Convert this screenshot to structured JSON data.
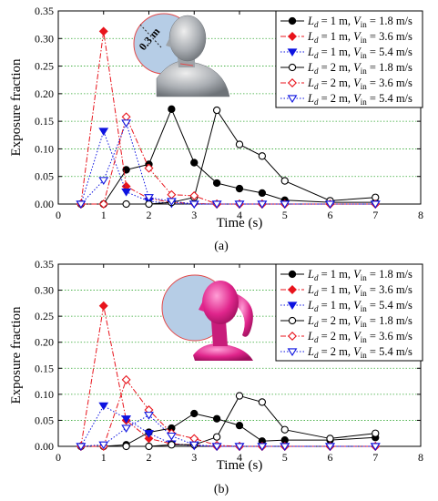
{
  "chart_data": [
    {
      "type": "line",
      "caption": "(a)",
      "xlabel": "Time (s)",
      "ylabel": "Exposure fraction",
      "xlim": [
        0,
        8
      ],
      "ylim": [
        0,
        0.35
      ],
      "xticks": [
        "0",
        "1",
        "2",
        "3",
        "4",
        "5",
        "6",
        "7",
        "8"
      ],
      "yticks": [
        "0.00",
        "0.05",
        "0.10",
        "0.15",
        "0.20",
        "0.25",
        "0.30",
        "0.35"
      ],
      "grid": "horizontal dotted green",
      "legend_position": "top-right",
      "inset": "male-head",
      "inset_label": "0.3 m",
      "series": [
        {
          "legend": [
            "L",
            "d",
            " = 1 m, ",
            "V",
            "in",
            " = 1.8 m/s"
          ],
          "color": "#000000",
          "marker": "circle-filled",
          "dash": "solid",
          "x": [
            0.5,
            1,
            1.5,
            2,
            2.5,
            3,
            3.5,
            4,
            4.5,
            5,
            6,
            7
          ],
          "y": [
            0.0,
            0.0,
            0.062,
            0.072,
            0.172,
            0.075,
            0.038,
            0.028,
            0.02,
            0.007,
            0.003,
            0.003
          ]
        },
        {
          "legend": [
            "L",
            "d",
            " = 1 m, ",
            "V",
            "in",
            " = 3.6 m/s"
          ],
          "color": "#e8141c",
          "marker": "diamond-filled",
          "dash": "dashdot",
          "x": [
            0.5,
            1,
            1.5,
            2,
            2.5,
            3,
            3.5,
            4,
            4.5,
            5,
            6,
            7
          ],
          "y": [
            0.0,
            0.313,
            0.032,
            0.01,
            0.003,
            0.001,
            0.0,
            0.0,
            0.0,
            0.0,
            0.0,
            0.0
          ]
        },
        {
          "legend": [
            "L",
            "d",
            " = 1 m, ",
            "V",
            "in",
            " = 5.4 m/s"
          ],
          "color": "#0d13e0",
          "marker": "triangle-down-filled",
          "dash": "dotted",
          "x": [
            0.5,
            1,
            1.5,
            2,
            2.5,
            3,
            3.5,
            4,
            4.5,
            5,
            6,
            7
          ],
          "y": [
            0.0,
            0.132,
            0.022,
            0.005,
            0.001,
            0.0,
            0.0,
            0.0,
            0.0,
            0.0,
            0.0,
            0.0
          ]
        },
        {
          "legend": [
            "L",
            "d",
            " = 2 m, ",
            "V",
            "in",
            " = 1.8 m/s"
          ],
          "color": "#000000",
          "marker": "circle-open",
          "dash": "solid",
          "x": [
            0.5,
            1,
            1.5,
            2,
            2.5,
            3,
            3.5,
            4,
            4.5,
            5,
            6,
            7
          ],
          "y": [
            0.0,
            0.0,
            0.0,
            0.0,
            0.003,
            0.012,
            0.17,
            0.108,
            0.087,
            0.042,
            0.006,
            0.012
          ]
        },
        {
          "legend": [
            "L",
            "d",
            " = 2 m, ",
            "V",
            "in",
            " = 3.6 m/s"
          ],
          "color": "#e8141c",
          "marker": "diamond-open",
          "dash": "dashdot",
          "x": [
            0.5,
            1,
            1.5,
            2,
            2.5,
            3,
            3.5,
            4,
            4.5,
            5,
            6,
            7
          ],
          "y": [
            0.0,
            0.0,
            0.158,
            0.065,
            0.017,
            0.015,
            0.0,
            0.0,
            0.0,
            0.0,
            0.0,
            0.0
          ]
        },
        {
          "legend": [
            "L",
            "d",
            " = 2 m, ",
            "V",
            "in",
            " = 5.4 m/s"
          ],
          "color": "#0d13e0",
          "marker": "triangle-down-open",
          "dash": "dotted",
          "x": [
            0.5,
            1,
            1.5,
            2,
            2.5,
            3,
            3.5,
            4,
            4.5,
            5,
            6,
            7
          ],
          "y": [
            0.0,
            0.043,
            0.147,
            0.012,
            0.005,
            0.0,
            0.0,
            0.0,
            0.0,
            0.0,
            0.0,
            0.0
          ]
        }
      ]
    },
    {
      "type": "line",
      "caption": "(b)",
      "xlabel": "Time (s)",
      "ylabel": "Exposure fraction",
      "xlim": [
        0,
        8
      ],
      "ylim": [
        0,
        0.35
      ],
      "xticks": [
        "0",
        "1",
        "2",
        "3",
        "4",
        "5",
        "6",
        "7",
        "8"
      ],
      "yticks": [
        "0.00",
        "0.05",
        "0.10",
        "0.15",
        "0.20",
        "0.25",
        "0.30",
        "0.35"
      ],
      "grid": "horizontal dotted green",
      "legend_position": "top-right",
      "inset": "female-head",
      "series": [
        {
          "legend": [
            "L",
            "d",
            " = 1 m, ",
            "V",
            "in",
            " = 1.8 m/s"
          ],
          "color": "#000000",
          "marker": "circle-filled",
          "dash": "solid",
          "x": [
            0.5,
            1,
            1.5,
            2,
            2.5,
            3,
            3.5,
            4,
            4.5,
            5,
            6,
            7
          ],
          "y": [
            0.0,
            0.0,
            0.003,
            0.027,
            0.035,
            0.063,
            0.053,
            0.04,
            0.01,
            0.012,
            0.012,
            0.017
          ]
        },
        {
          "legend": [
            "L",
            "d",
            " = 1 m, ",
            "V",
            "in",
            " = 3.6 m/s"
          ],
          "color": "#e8141c",
          "marker": "diamond-filled",
          "dash": "dashdot",
          "x": [
            0.5,
            1,
            1.5,
            2,
            2.5,
            3,
            3.5,
            4,
            4.5,
            5,
            6,
            7
          ],
          "y": [
            0.0,
            0.27,
            0.05,
            0.015,
            0.005,
            0.002,
            0.0,
            0.0,
            0.0,
            0.0,
            0.0,
            0.0
          ]
        },
        {
          "legend": [
            "L",
            "d",
            " = 1 m, ",
            "V",
            "in",
            " = 5.4 m/s"
          ],
          "color": "#0d13e0",
          "marker": "triangle-down-filled",
          "dash": "dotted",
          "x": [
            0.5,
            1,
            1.5,
            2,
            2.5,
            3,
            3.5,
            4,
            4.5,
            5,
            6,
            7
          ],
          "y": [
            0.0,
            0.078,
            0.053,
            0.025,
            0.005,
            0.001,
            0.0,
            0.0,
            0.0,
            0.0,
            0.0,
            0.0
          ]
        },
        {
          "legend": [
            "L",
            "d",
            " = 2 m, ",
            "V",
            "in",
            " = 1.8 m/s"
          ],
          "color": "#000000",
          "marker": "circle-open",
          "dash": "solid",
          "x": [
            0.5,
            1,
            1.5,
            2,
            2.5,
            3,
            3.5,
            4,
            4.5,
            5,
            6,
            7
          ],
          "y": [
            0.0,
            0.0,
            0.0,
            0.0,
            0.003,
            0.003,
            0.018,
            0.097,
            0.085,
            0.032,
            0.015,
            0.025
          ]
        },
        {
          "legend": [
            "L",
            "d",
            " = 2 m, ",
            "V",
            "in",
            " = 3.6 m/s"
          ],
          "color": "#e8141c",
          "marker": "diamond-open",
          "dash": "dashdot",
          "x": [
            0.5,
            1,
            1.5,
            2,
            2.5,
            3,
            3.5,
            4,
            4.5,
            5,
            6,
            7
          ],
          "y": [
            0.0,
            0.0,
            0.128,
            0.07,
            0.025,
            0.015,
            0.002,
            0.0,
            0.0,
            0.0,
            0.0,
            0.0
          ]
        },
        {
          "legend": [
            "L",
            "d",
            " = 2 m, ",
            "V",
            "in",
            " = 5.4 m/s"
          ],
          "color": "#0d13e0",
          "marker": "triangle-down-open",
          "dash": "dotted",
          "x": [
            0.5,
            1,
            1.5,
            2,
            2.5,
            3,
            3.5,
            4,
            4.5,
            5,
            6,
            7
          ],
          "y": [
            0.0,
            0.003,
            0.035,
            0.06,
            0.02,
            0.003,
            0.0,
            0.0,
            0.0,
            0.0,
            0.0,
            0.0
          ]
        }
      ]
    }
  ]
}
